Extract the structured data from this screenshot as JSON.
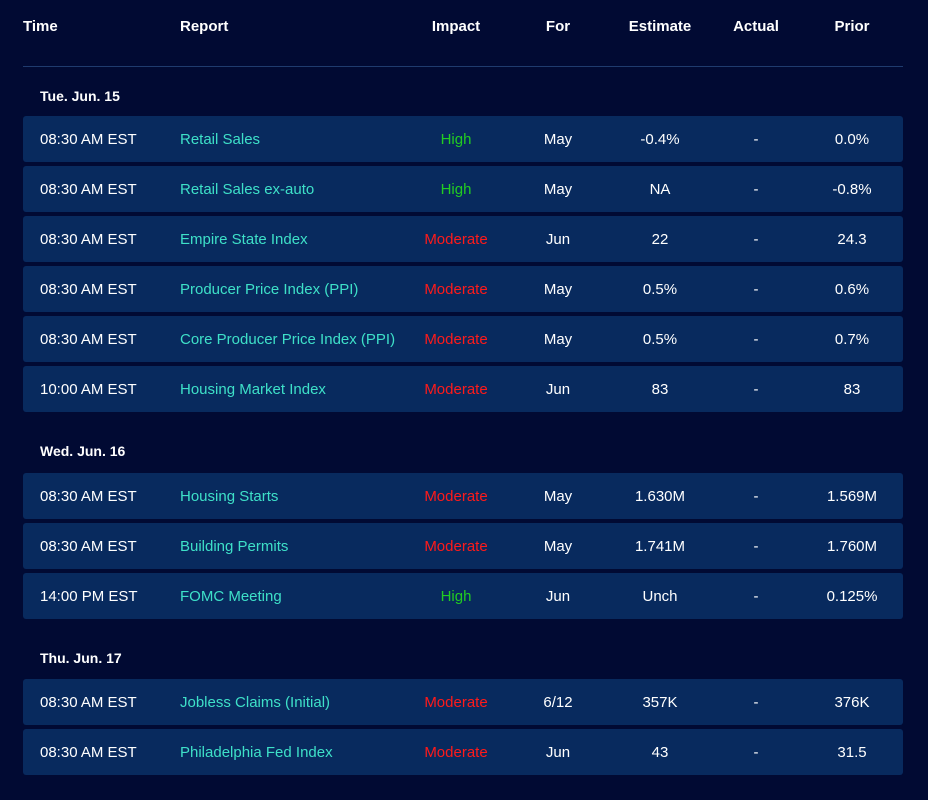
{
  "headers": {
    "time": "Time",
    "report": "Report",
    "impact": "Impact",
    "for": "For",
    "estimate": "Estimate",
    "actual": "Actual",
    "prior": "Prior"
  },
  "colors": {
    "high": "#22cc22",
    "moderate": "#ff1a1a",
    "report_link": "#3ee0c8",
    "row_bg": "#082a5e",
    "page_bg": "#010a33"
  },
  "days": [
    {
      "label": "Tue. Jun. 15",
      "rows": [
        {
          "time": "08:30 AM EST",
          "report": "Retail Sales",
          "impact": "High",
          "for": "May",
          "estimate": "-0.4%",
          "actual": "-",
          "prior": "0.0%"
        },
        {
          "time": "08:30 AM EST",
          "report": "Retail Sales ex-auto",
          "impact": "High",
          "for": "May",
          "estimate": "NA",
          "actual": "-",
          "prior": "-0.8%"
        },
        {
          "time": "08:30 AM EST",
          "report": "Empire State Index",
          "impact": "Moderate",
          "for": "Jun",
          "estimate": "22",
          "actual": "-",
          "prior": "24.3"
        },
        {
          "time": "08:30 AM EST",
          "report": "Producer Price Index (PPI)",
          "impact": "Moderate",
          "for": "May",
          "estimate": "0.5%",
          "actual": "-",
          "prior": "0.6%"
        },
        {
          "time": "08:30 AM EST",
          "report": "Core Producer Price Index (PPI)",
          "impact": "Moderate",
          "for": "May",
          "estimate": "0.5%",
          "actual": "-",
          "prior": "0.7%"
        },
        {
          "time": "10:00 AM EST",
          "report": "Housing Market Index",
          "impact": "Moderate",
          "for": "Jun",
          "estimate": "83",
          "actual": "-",
          "prior": "83"
        }
      ]
    },
    {
      "label": "Wed. Jun. 16",
      "rows": [
        {
          "time": "08:30 AM EST",
          "report": "Housing Starts",
          "impact": "Moderate",
          "for": "May",
          "estimate": "1.630M",
          "actual": "-",
          "prior": "1.569M"
        },
        {
          "time": "08:30 AM EST",
          "report": "Building Permits",
          "impact": "Moderate",
          "for": "May",
          "estimate": "1.741M",
          "actual": "-",
          "prior": "1.760M"
        },
        {
          "time": "14:00 PM EST",
          "report": "FOMC Meeting",
          "impact": "High",
          "for": "Jun",
          "estimate": "Unch",
          "actual": "-",
          "prior": "0.125%"
        }
      ]
    },
    {
      "label": "Thu. Jun. 17",
      "rows": [
        {
          "time": "08:30 AM EST",
          "report": "Jobless Claims (Initial)",
          "impact": "Moderate",
          "for": "6/12",
          "estimate": "357K",
          "actual": "-",
          "prior": "376K"
        },
        {
          "time": "08:30 AM EST",
          "report": "Philadelphia Fed Index",
          "impact": "Moderate",
          "for": "Jun",
          "estimate": "43",
          "actual": "-",
          "prior": "31.5"
        }
      ]
    }
  ]
}
